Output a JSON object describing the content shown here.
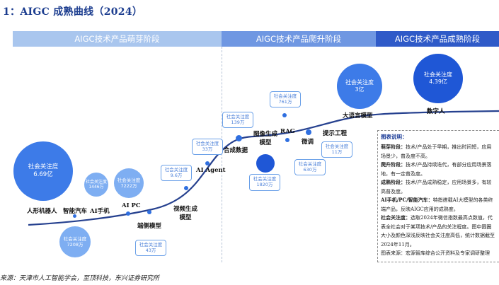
{
  "title": "1：AIGC 成熟曲线（2024）",
  "stages": [
    {
      "label": "AIGC技术产品萌芽阶段"
    },
    {
      "label": "AIGC技术产品爬升阶段"
    },
    {
      "label": "AIGC技术产品成熟阶段"
    }
  ],
  "bubbles": [
    {
      "label": "社会关注度",
      "value": "6.69亿"
    },
    {
      "label": "社会关注度",
      "value": "1446万"
    },
    {
      "label": "社会关注度",
      "value": "7222万"
    },
    {
      "label": "社会关注度",
      "value": "7208万"
    },
    {
      "label": "社会关注度",
      "value": "3亿"
    },
    {
      "label": "社会关注度",
      "value": "4.39亿"
    },
    {
      "label": "社会关注度",
      "value": "1820万"
    }
  ],
  "boxes": [
    {
      "label": "社会关注度",
      "value": "43万"
    },
    {
      "label": "社会关注度",
      "value": "9.6万"
    },
    {
      "label": "社会关注度",
      "value": "33万"
    },
    {
      "label": "社会关注度",
      "value": "139万"
    },
    {
      "label": "社会关注度",
      "value": "761万"
    },
    {
      "label": "社会关注度",
      "value": "630万"
    },
    {
      "label": "社会关注度",
      "value": "11万"
    }
  ],
  "products": [
    {
      "label": "人形机器人"
    },
    {
      "label": "智能汽车"
    },
    {
      "label": "AI手机"
    },
    {
      "label": "AI PC"
    },
    {
      "label": "端侧模型"
    },
    {
      "label": "视频生成\n模型"
    },
    {
      "label": "AI Agent"
    },
    {
      "label": "合成数据"
    },
    {
      "label": "图像生成\n模型"
    },
    {
      "label": "RAG"
    },
    {
      "label": "微调"
    },
    {
      "label": "提示工程"
    },
    {
      "label": "大语言模型"
    },
    {
      "label": "数字人"
    }
  ],
  "legend": {
    "title": "图表说明：",
    "items": [
      {
        "head": "萌芽阶段：",
        "text": "技术/产品处于早期，推出时间短，应用场景少，普及度不高。"
      },
      {
        "head": "爬升阶段：",
        "text": "技术/产品持续迭代，有部分应用场景落地，有一定普及度。"
      },
      {
        "head": "成熟阶段：",
        "text": "技术/产品成熟稳定，应用场景多，有较高普及度。"
      },
      {
        "head": "AI手机/PC/智能汽车：",
        "text": "特指搭载AI大模型的各类终端产品，反映AIGC应用的成熟度。"
      },
      {
        "head": "社会关注度：",
        "text": "选取2024年微信指数最高点数值，代表全社会对于某项技术/产品的关注程度。图中圆圈大小及颜色深浅反映社会关注度高低，统计数据截至2024年11月。"
      }
    ],
    "source": "图表来源：宏源智库综合公开资料及专家调研整理"
  },
  "source": "来源：天津市人工智能学会，至顶科技，东兴证券研究所"
}
